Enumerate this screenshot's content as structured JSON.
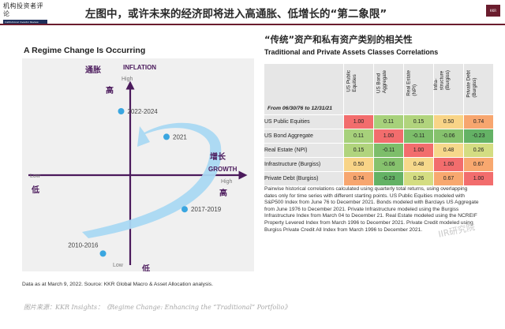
{
  "header": {
    "logo_cn": "机构投资者评论",
    "logo_en": "Institutional Investor Review",
    "headline": "左图中，或许未来的经济即将进入高通胀、低增长的“第二象限”",
    "badge": "KKR"
  },
  "left": {
    "title": "A Regime Change Is Occurring",
    "axes": {
      "inflation_cn": "通胀",
      "inflation_en": "INFLATION",
      "high_top": "High",
      "high_top_cn": "高",
      "growth_cn": "增长",
      "growth_en": "GROWTH",
      "high_right": "High",
      "high_right_cn": "高",
      "low_left": "Low",
      "low_left_cn": "低",
      "low_bottom": "Low",
      "low_bottom_cn": "低"
    },
    "points": [
      {
        "label": "2022-2024",
        "growth": -0.1,
        "inflation": 0.75
      },
      {
        "label": "2021",
        "growth": 0.4,
        "inflation": 0.45
      },
      {
        "label": "2017-2019",
        "growth": 0.6,
        "inflation": -0.4
      },
      {
        "label": "2010-2016",
        "growth": -0.3,
        "inflation": -0.92
      }
    ],
    "note": "Data as at March 9, 2022. Source: KKR Global Macro & Asset Allocation analysis.",
    "colors": {
      "dot": "#3aa6e0",
      "arrow": "#a9d8f2",
      "axis": "#4b1a5c"
    }
  },
  "right": {
    "title_cn": "“传统”资产和私有资产类别的相关性",
    "title_en": "Traditional and Private Assets Classes Correlations",
    "period": "From 06/30/76 to 12/31/21",
    "columns": [
      "US Public\nEquities",
      "US Bond\nAggregate",
      "Real Estate\n(NPI)",
      "Infra-\nstructure\n(Burgiss)",
      "Private Debt\n(Burgiss)"
    ],
    "rows": [
      {
        "label": "US Public Equities",
        "values": [
          "1.00",
          "0.11",
          "0.15",
          "0.50",
          "0.74"
        ],
        "colors": [
          "#f26d6d",
          "#a7d17b",
          "#b1d47d",
          "#f8d487",
          "#f7a66f"
        ]
      },
      {
        "label": "US Bond Aggregate",
        "values": [
          "0.11",
          "1.00",
          "-0.11",
          "-0.06",
          "-0.23"
        ],
        "colors": [
          "#a7d17b",
          "#f26d6d",
          "#7dbe6a",
          "#86c26d",
          "#64b265"
        ]
      },
      {
        "label": "Real Estate (NPI)",
        "values": [
          "0.15",
          "-0.11",
          "1.00",
          "0.48",
          "0.26"
        ],
        "colors": [
          "#b1d47d",
          "#7dbe6a",
          "#f26d6d",
          "#f6d88b",
          "#d4dd82"
        ]
      },
      {
        "label": "Infrastructure (Burgiss)",
        "values": [
          "0.50",
          "-0.06",
          "0.48",
          "1.00",
          "0.67"
        ],
        "colors": [
          "#f8d487",
          "#86c26d",
          "#f6d88b",
          "#f26d6d",
          "#f8a86f"
        ]
      },
      {
        "label": "Private Debt (Burgiss)",
        "values": [
          "0.74",
          "-0.23",
          "0.26",
          "0.67",
          "1.00"
        ],
        "colors": [
          "#f7a66f",
          "#64b265",
          "#d4dd82",
          "#f8a86f",
          "#f26d6d"
        ]
      }
    ],
    "explanation": "Pairwise historical correlations calculated using quarterly total returns, using overlapping dates only for time series with different starting points. US Public Equities modeled with S&P500 Index from June 76 to December 2021. Bonds modeled with Barclays US Aggregate from June 1976 to December 2021. Private Infrastructure modeled using the Burgiss Infrastructure Index from March 04 to December 21. Real Estate modeled using the NCREIF Property Levered Index from March 1996 to December 2021. Private Credit modeled using Burgiss Private Credit All Index from March 1996 to December 2021.",
    "watermark": "IIR研究院"
  },
  "footer": {
    "source": "图片来源：KKR Insights：《Regime Change: Enhancing the “Traditional” Portfolio》"
  }
}
